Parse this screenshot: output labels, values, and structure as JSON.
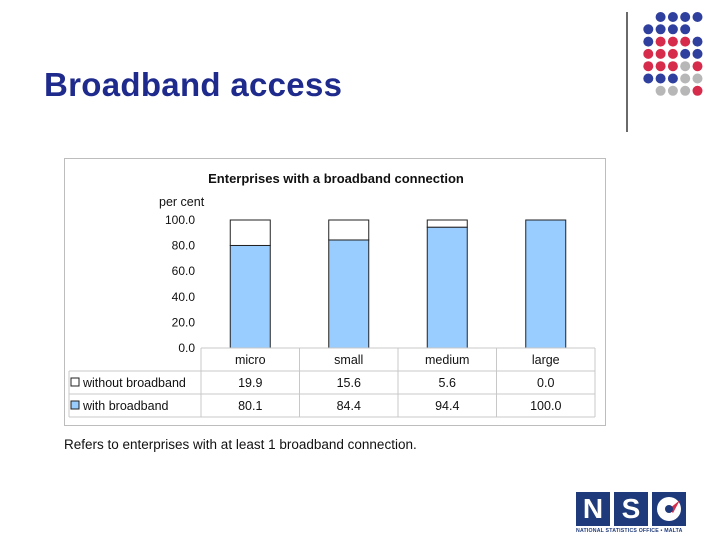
{
  "slide": {
    "title": "Broadband access",
    "footnote": "Refers to enterprises with at least 1 broadband connection."
  },
  "logo": {
    "letters": [
      "N",
      "S"
    ],
    "subtitle": "NATIONAL STATISTICS OFFICE • MALTA",
    "color": "#1f3a7a"
  },
  "decor": {
    "dot_colors": {
      "blue": "#2f3f9e",
      "red": "#d62b4b",
      "grey": "#b7b7b7"
    },
    "dot_pattern": [
      "..BBBB",
      ".BBBB.",
      ".BRRRB",
      ".RRRBB",
      ".RRRGR",
      ".BBBGG",
      "..GGGR"
    ]
  },
  "chart_data": {
    "type": "bar",
    "stacked": true,
    "title": "Enterprises with a broadband connection",
    "ylabel": "per cent",
    "ylim": [
      0,
      100
    ],
    "yticks": [
      "0.0",
      "20.0",
      "40.0",
      "60.0",
      "80.0",
      "100.0"
    ],
    "categories": [
      "micro",
      "small",
      "medium",
      "large"
    ],
    "series": [
      {
        "name": "with broadband",
        "values": [
          80.1,
          84.4,
          94.4,
          100.0
        ],
        "labels": [
          "80.1",
          "84.4",
          "94.4",
          "100.0"
        ],
        "color": "#99ccff"
      },
      {
        "name": "without broadband",
        "values": [
          19.9,
          15.6,
          5.6,
          0.0
        ],
        "labels": [
          "19.9",
          "15.6",
          "5.6",
          "0.0"
        ],
        "color": "#ffffff"
      }
    ],
    "legend": "data-table-left",
    "grid": false
  }
}
